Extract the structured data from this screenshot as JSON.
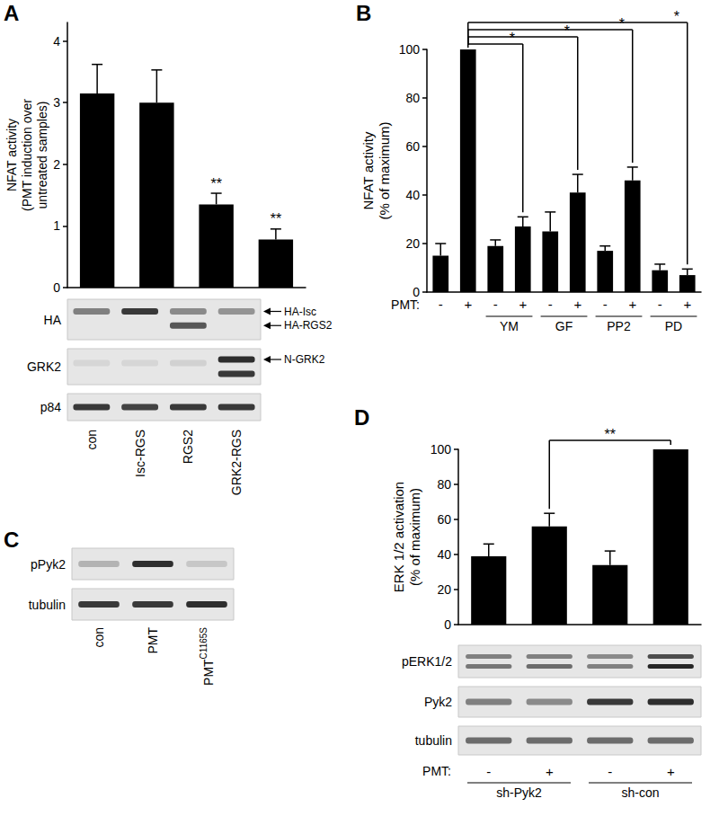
{
  "panel_labels": [
    "A",
    "B",
    "C",
    "D"
  ],
  "chart_data": [
    {
      "type": "bar",
      "ylabel": "NFAT activity\n(PMT induction over\nuntreated samples)",
      "categories": [
        "con",
        "Isc-RGS",
        "RGS2",
        "GRK2-RGS"
      ],
      "values": [
        3.15,
        3.0,
        1.35,
        0.78
      ],
      "errors": [
        0.47,
        0.53,
        0.18,
        0.17
      ],
      "color": "#000000",
      "ylim": [
        0,
        4.3
      ],
      "yticks": [
        0,
        1,
        2,
        3,
        4
      ],
      "grid": false,
      "tick_labels": "y",
      "annotations": [
        {
          "index": 2,
          "label": "**"
        },
        {
          "index": 3,
          "label": "**"
        }
      ]
    },
    {
      "type": "bar",
      "ylabel": "NFAT activity\n(% of maximum)",
      "group_label": "PMT:",
      "categories": [
        "-",
        "+",
        "-",
        "+",
        "-",
        "+",
        "-",
        "+",
        "-",
        "+"
      ],
      "values": [
        15,
        100,
        19,
        27,
        25,
        41,
        17,
        46,
        9,
        7
      ],
      "errors": [
        5,
        0,
        2.5,
        4,
        8,
        7.5,
        2,
        5.5,
        2.5,
        2.5
      ],
      "color": "#000000",
      "ylim": [
        0,
        100
      ],
      "yticks": [
        0,
        20,
        40,
        60,
        80,
        100
      ],
      "grid": false,
      "groups": [
        {
          "label": "YM",
          "start": 2,
          "end": 3
        },
        {
          "label": "GF",
          "start": 4,
          "end": 5
        },
        {
          "label": "PP2",
          "start": 6,
          "end": 7
        },
        {
          "label": "PD",
          "start": 8,
          "end": 9
        }
      ],
      "comparisons": [
        {
          "from": 1,
          "to": 3,
          "label": "*"
        },
        {
          "from": 1,
          "to": 5,
          "label": "*"
        },
        {
          "from": 1,
          "to": 7,
          "label": "*"
        },
        {
          "from": 1,
          "to": 9,
          "label": "*"
        }
      ]
    },
    {
      "type": "bar",
      "ylabel": "ERK 1/2 activation\n(% of maximum)",
      "group_label": "PMT:",
      "categories": [
        "-",
        "+",
        "-",
        "+"
      ],
      "values": [
        39,
        56,
        34,
        100
      ],
      "errors": [
        7,
        7.5,
        8,
        0
      ],
      "color": "#000000",
      "ylim": [
        0,
        100
      ],
      "yticks": [
        0,
        20,
        40,
        60,
        80,
        100
      ],
      "grid": false,
      "tick_labels": "y",
      "groups": [
        {
          "label": "sh-Pyk2",
          "start": 0,
          "end": 1
        },
        {
          "label": "sh-con",
          "start": 2,
          "end": 3
        }
      ],
      "comparisons": [
        {
          "from": 1,
          "to": 3,
          "label": "**"
        }
      ]
    }
  ],
  "blots": [
    {
      "panel": "A",
      "rows": [
        "HA",
        "GRK2",
        "p84"
      ],
      "markers": [
        {
          "label": "HA-Isc",
          "row": 0
        },
        {
          "label": "HA-RGS2",
          "row": 0
        },
        {
          "label": "N-GRK2",
          "row": 1
        }
      ]
    },
    {
      "panel": "C",
      "rows": [
        "pPyk2",
        "tubulin"
      ],
      "lanes": [
        {
          "text": "con"
        },
        {
          "text": "PMT"
        },
        {
          "text": "PMT",
          "sup": "C1165S"
        }
      ]
    },
    {
      "panel": "D",
      "rows": [
        "pERK1/2",
        "Pyk2",
        "tubulin"
      ]
    }
  ]
}
